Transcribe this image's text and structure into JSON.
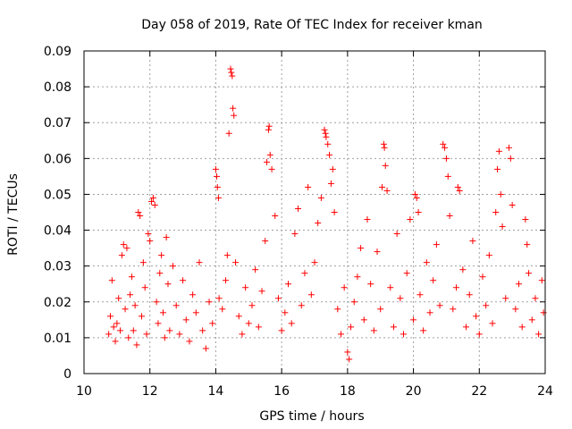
{
  "chart_data": {
    "type": "scatter",
    "title": "Day 058 of 2019, Rate Of TEC Index for receiver kman",
    "xlabel": "GPS time / hours",
    "ylabel": "ROTI / TECUs",
    "xlim": [
      10,
      24
    ],
    "ylim": [
      0,
      0.09
    ],
    "xticks": [
      10,
      12,
      14,
      16,
      18,
      20,
      22,
      24
    ],
    "xtick_labels": [
      "10",
      "12",
      "14",
      "16",
      "18",
      "20",
      "22",
      "24"
    ],
    "yticks": [
      0,
      0.01,
      0.02,
      0.03,
      0.04,
      0.05,
      0.06,
      0.07,
      0.08,
      0.09
    ],
    "ytick_labels": [
      "0",
      "0.01",
      "0.02",
      "0.03",
      "0.04",
      "0.05",
      "0.06",
      "0.07",
      "0.08",
      "0.09"
    ],
    "grid": true,
    "marker": "+",
    "color": "#ff0000",
    "series": [
      {
        "name": "ROTI",
        "points": [
          [
            10.75,
            0.011
          ],
          [
            10.8,
            0.016
          ],
          [
            10.85,
            0.026
          ],
          [
            10.9,
            0.013
          ],
          [
            10.95,
            0.009
          ],
          [
            11.0,
            0.014
          ],
          [
            11.05,
            0.021
          ],
          [
            11.1,
            0.012
          ],
          [
            11.15,
            0.033
          ],
          [
            11.2,
            0.036
          ],
          [
            11.25,
            0.018
          ],
          [
            11.3,
            0.035
          ],
          [
            11.35,
            0.01
          ],
          [
            11.4,
            0.022
          ],
          [
            11.45,
            0.027
          ],
          [
            11.5,
            0.012
          ],
          [
            11.55,
            0.019
          ],
          [
            11.6,
            0.008
          ],
          [
            11.65,
            0.045
          ],
          [
            11.7,
            0.044
          ],
          [
            11.75,
            0.016
          ],
          [
            11.8,
            0.031
          ],
          [
            11.85,
            0.024
          ],
          [
            11.9,
            0.011
          ],
          [
            11.95,
            0.039
          ],
          [
            12.0,
            0.037
          ],
          [
            12.05,
            0.048
          ],
          [
            12.1,
            0.049
          ],
          [
            12.15,
            0.047
          ],
          [
            12.2,
            0.02
          ],
          [
            12.25,
            0.014
          ],
          [
            12.3,
            0.028
          ],
          [
            12.35,
            0.033
          ],
          [
            12.4,
            0.017
          ],
          [
            12.45,
            0.01
          ],
          [
            12.5,
            0.038
          ],
          [
            12.55,
            0.025
          ],
          [
            12.6,
            0.012
          ],
          [
            12.7,
            0.03
          ],
          [
            12.8,
            0.019
          ],
          [
            12.9,
            0.011
          ],
          [
            13.0,
            0.026
          ],
          [
            13.1,
            0.015
          ],
          [
            13.2,
            0.009
          ],
          [
            13.3,
            0.022
          ],
          [
            13.4,
            0.017
          ],
          [
            13.5,
            0.031
          ],
          [
            13.6,
            0.012
          ],
          [
            13.7,
            0.007
          ],
          [
            13.8,
            0.02
          ],
          [
            13.9,
            0.014
          ],
          [
            14.0,
            0.057
          ],
          [
            14.03,
            0.055
          ],
          [
            14.05,
            0.052
          ],
          [
            14.08,
            0.049
          ],
          [
            14.1,
            0.021
          ],
          [
            14.2,
            0.018
          ],
          [
            14.3,
            0.026
          ],
          [
            14.35,
            0.033
          ],
          [
            14.4,
            0.067
          ],
          [
            14.45,
            0.085
          ],
          [
            14.47,
            0.084
          ],
          [
            14.5,
            0.083
          ],
          [
            14.52,
            0.074
          ],
          [
            14.55,
            0.072
          ],
          [
            14.6,
            0.031
          ],
          [
            14.7,
            0.016
          ],
          [
            14.8,
            0.011
          ],
          [
            14.9,
            0.024
          ],
          [
            15.0,
            0.014
          ],
          [
            15.1,
            0.019
          ],
          [
            15.2,
            0.029
          ],
          [
            15.3,
            0.013
          ],
          [
            15.4,
            0.023
          ],
          [
            15.5,
            0.037
          ],
          [
            15.55,
            0.059
          ],
          [
            15.6,
            0.068
          ],
          [
            15.62,
            0.069
          ],
          [
            15.65,
            0.061
          ],
          [
            15.7,
            0.057
          ],
          [
            15.8,
            0.044
          ],
          [
            15.9,
            0.021
          ],
          [
            16.0,
            0.012
          ],
          [
            16.1,
            0.017
          ],
          [
            16.2,
            0.025
          ],
          [
            16.3,
            0.014
          ],
          [
            16.4,
            0.039
          ],
          [
            16.5,
            0.046
          ],
          [
            16.6,
            0.019
          ],
          [
            16.7,
            0.028
          ],
          [
            16.8,
            0.052
          ],
          [
            16.9,
            0.022
          ],
          [
            17.0,
            0.031
          ],
          [
            17.1,
            0.042
          ],
          [
            17.2,
            0.049
          ],
          [
            17.3,
            0.068
          ],
          [
            17.33,
            0.067
          ],
          [
            17.35,
            0.066
          ],
          [
            17.4,
            0.064
          ],
          [
            17.45,
            0.061
          ],
          [
            17.5,
            0.053
          ],
          [
            17.55,
            0.057
          ],
          [
            17.6,
            0.045
          ],
          [
            17.7,
            0.018
          ],
          [
            17.8,
            0.011
          ],
          [
            17.9,
            0.024
          ],
          [
            18.0,
            0.006
          ],
          [
            18.05,
            0.004
          ],
          [
            18.1,
            0.013
          ],
          [
            18.2,
            0.02
          ],
          [
            18.3,
            0.027
          ],
          [
            18.4,
            0.035
          ],
          [
            18.5,
            0.015
          ],
          [
            18.6,
            0.043
          ],
          [
            18.7,
            0.025
          ],
          [
            18.8,
            0.012
          ],
          [
            18.9,
            0.034
          ],
          [
            19.0,
            0.018
          ],
          [
            19.05,
            0.052
          ],
          [
            19.1,
            0.064
          ],
          [
            19.12,
            0.063
          ],
          [
            19.15,
            0.058
          ],
          [
            19.2,
            0.051
          ],
          [
            19.3,
            0.024
          ],
          [
            19.4,
            0.013
          ],
          [
            19.5,
            0.039
          ],
          [
            19.6,
            0.021
          ],
          [
            19.7,
            0.011
          ],
          [
            19.8,
            0.028
          ],
          [
            19.9,
            0.043
          ],
          [
            20.0,
            0.015
          ],
          [
            20.05,
            0.05
          ],
          [
            20.1,
            0.049
          ],
          [
            20.15,
            0.045
          ],
          [
            20.2,
            0.022
          ],
          [
            20.3,
            0.012
          ],
          [
            20.4,
            0.031
          ],
          [
            20.5,
            0.017
          ],
          [
            20.6,
            0.026
          ],
          [
            20.7,
            0.036
          ],
          [
            20.8,
            0.019
          ],
          [
            20.9,
            0.064
          ],
          [
            20.95,
            0.063
          ],
          [
            21.0,
            0.06
          ],
          [
            21.05,
            0.055
          ],
          [
            21.1,
            0.044
          ],
          [
            21.2,
            0.018
          ],
          [
            21.3,
            0.024
          ],
          [
            21.35,
            0.052
          ],
          [
            21.4,
            0.051
          ],
          [
            21.5,
            0.029
          ],
          [
            21.6,
            0.013
          ],
          [
            21.7,
            0.022
          ],
          [
            21.8,
            0.037
          ],
          [
            21.9,
            0.016
          ],
          [
            22.0,
            0.011
          ],
          [
            22.1,
            0.027
          ],
          [
            22.2,
            0.019
          ],
          [
            22.3,
            0.033
          ],
          [
            22.4,
            0.014
          ],
          [
            22.5,
            0.045
          ],
          [
            22.55,
            0.057
          ],
          [
            22.6,
            0.062
          ],
          [
            22.65,
            0.05
          ],
          [
            22.7,
            0.041
          ],
          [
            22.8,
            0.021
          ],
          [
            22.9,
            0.063
          ],
          [
            22.95,
            0.06
          ],
          [
            23.0,
            0.047
          ],
          [
            23.1,
            0.018
          ],
          [
            23.2,
            0.025
          ],
          [
            23.3,
            0.013
          ],
          [
            23.4,
            0.043
          ],
          [
            23.45,
            0.036
          ],
          [
            23.5,
            0.028
          ],
          [
            23.6,
            0.015
          ],
          [
            23.7,
            0.021
          ],
          [
            23.8,
            0.011
          ],
          [
            23.9,
            0.026
          ],
          [
            23.95,
            0.017
          ]
        ]
      }
    ]
  }
}
